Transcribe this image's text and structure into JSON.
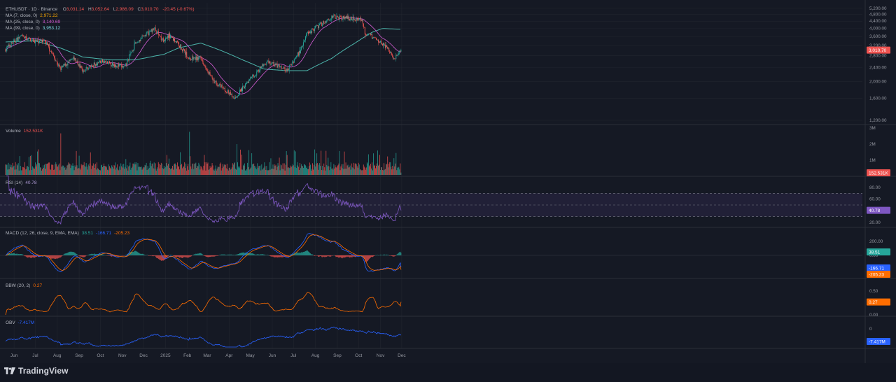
{
  "brand": {
    "name": "TradingView"
  },
  "colors": {
    "background": "#151924",
    "grid": "#22262f",
    "separator": "#2a2e39",
    "up": "#26a69a",
    "down": "#ef5350",
    "ma7": "#f7a600",
    "ma25": "#d65dd6",
    "ma99": "#4db6ac",
    "rsi": "#7e57c2",
    "macd": "#2962ff",
    "signal": "#ff6d00",
    "bbw": "#ff6d00",
    "obv": "#2962ff"
  },
  "chart_data": {
    "type": "candlestick",
    "symbol": "ETHUSDT",
    "interval": "1D",
    "exchange": "Binance",
    "legend": {
      "header": "ETHUSDT · 1D · Binance",
      "open_label": "O",
      "open": "3,031.14",
      "high_label": "H",
      "high": "3,052.64",
      "low_label": "L",
      "low": "2,986.09",
      "close_label": "C",
      "close": "3,010.70",
      "change": "-20.45 (-0.67%)"
    },
    "indicators": [
      {
        "label": "MA (7, close, 0)",
        "value": "2,971.22",
        "color": "#f7a600"
      },
      {
        "label": "MA (25, close, 0)",
        "value": "3,140.69",
        "color": "#d65dd6"
      },
      {
        "label": "MA (99, close, 0)",
        "value": "3,953.12",
        "color": "#4db6ac"
      }
    ],
    "price_axis": {
      "ticks": [
        "5,200.00",
        "4,800.00",
        "4,400.00",
        "4,000.00",
        "3,600.00",
        "3,200.00",
        "2,800.00",
        "2,400.00",
        "2,000.00",
        "1,600.00",
        "1,200.00"
      ],
      "last_price": "3,010.70",
      "last_value": 3010.7
    },
    "x_axis": {
      "ticks": [
        "Jun",
        "Jul",
        "Aug",
        "Sep",
        "Oct",
        "Nov",
        "Dec",
        "2025",
        "Feb",
        "Mar",
        "Apr",
        "May",
        "Jun",
        "Jul",
        "Aug",
        "Sep",
        "Oct",
        "Nov",
        "Dec"
      ]
    },
    "price_path": {
      "x_dates": [
        "2024-05-20",
        "2024-06-10",
        "2024-06-30",
        "2024-07-15",
        "2024-08-05",
        "2024-08-25",
        "2024-09-06",
        "2024-10-01",
        "2024-11-05",
        "2024-11-20",
        "2024-12-16",
        "2024-12-30",
        "2025-01-06",
        "2025-01-20",
        "2025-02-03",
        "2025-02-20",
        "2025-03-10",
        "2025-04-09",
        "2025-05-08",
        "2025-05-25",
        "2025-06-22",
        "2025-07-10",
        "2025-07-20",
        "2025-08-08",
        "2025-08-24",
        "2025-09-13",
        "2025-10-06",
        "2025-10-10",
        "2025-11-04",
        "2025-11-21",
        "2025-12-01"
      ],
      "close": [
        3050,
        3600,
        3400,
        3350,
        2350,
        2700,
        2300,
        2600,
        2400,
        3300,
        4000,
        3350,
        3650,
        3250,
        2700,
        2700,
        2000,
        1600,
        2200,
        2600,
        2300,
        2950,
        3750,
        4200,
        4650,
        4600,
        4500,
        3800,
        3300,
        2700,
        3010
      ]
    },
    "moving_average_99": {
      "x_dates": [
        "2024-05-20",
        "2024-06-30",
        "2024-08-05",
        "2024-09-06",
        "2024-10-15",
        "2024-11-20",
        "2024-12-30",
        "2025-01-20",
        "2025-02-20",
        "2025-03-20",
        "2025-04-20",
        "2025-05-20",
        "2025-06-22",
        "2025-07-20",
        "2025-08-24",
        "2025-09-26",
        "2025-10-20",
        "2025-11-04",
        "2025-12-01"
      ],
      "values": [
        3350,
        3400,
        3100,
        2750,
        2650,
        2650,
        2850,
        3100,
        3300,
        3000,
        2650,
        2350,
        2300,
        2300,
        2700,
        3300,
        3800,
        4000,
        3950
      ]
    },
    "volume": {
      "label": "Volume",
      "value": "152.531K",
      "ticks": [
        "3M",
        "2M",
        "1M"
      ]
    },
    "rsi": {
      "label": "RSI (14)",
      "value": "40.78",
      "ticks": [
        "80.00",
        "60.00",
        "40.00",
        "20.00"
      ],
      "bands": [
        30,
        70
      ]
    },
    "macd": {
      "label": "MACD (12, 26, close, 9, EMA, EMA)",
      "hist": "38.51",
      "macd": "-166.71",
      "signal": "-205.23",
      "ticks": [
        "200.00",
        "0.00"
      ]
    },
    "bbw": {
      "label": "BBW (20, 2)",
      "value": "0.27",
      "ticks": [
        "0.50",
        "0.25",
        "0.00"
      ]
    },
    "obv": {
      "label": "OBV",
      "value": "-7.417M",
      "ticks": [
        "0"
      ]
    }
  }
}
